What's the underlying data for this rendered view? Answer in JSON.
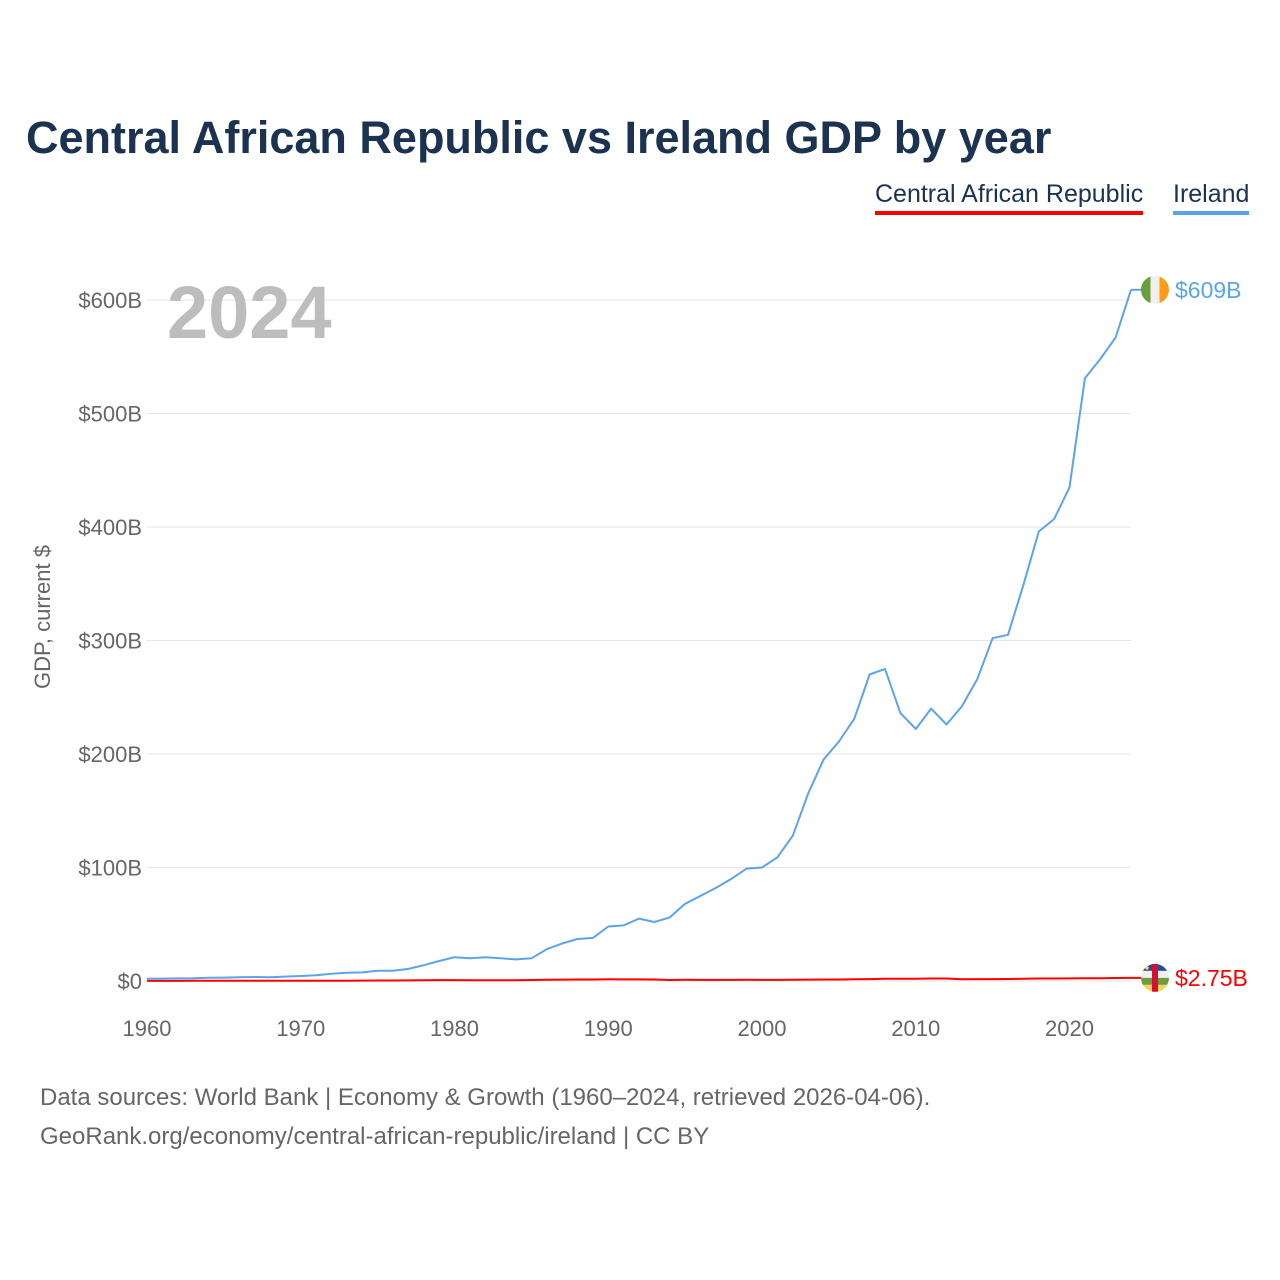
{
  "title": "Central African Republic vs Ireland GDP by year",
  "legend": [
    {
      "label": "Central African Republic",
      "color": "#ff0000"
    },
    {
      "label": "Ireland",
      "color": "#5ba4ec"
    }
  ],
  "year_watermark": "2024",
  "footer": {
    "line1": "Data sources: World Bank | Economy & Growth (1960–2024, retrieved 2026-04-06).",
    "line2": "GeoRank.org/economy/central-african-republic/ireland | CC BY"
  },
  "chart_data": {
    "type": "line",
    "title": "Central African Republic vs Ireland GDP by year",
    "xlabel": "",
    "ylabel": "GDP, current $",
    "xlim": [
      1960,
      2024
    ],
    "ylim": [
      0,
      600
    ],
    "y_unit": "billion USD",
    "grid": true,
    "legend_position": "top-right",
    "x_ticks": [
      1960,
      1970,
      1980,
      1990,
      2000,
      2010,
      2020
    ],
    "x_tick_labels": [
      "1960",
      "1970",
      "1980",
      "1990",
      "2000",
      "2010",
      "2020"
    ],
    "y_ticks": [
      0,
      100,
      200,
      300,
      400,
      500,
      600
    ],
    "y_tick_labels": [
      "$0",
      "$100B",
      "$200B",
      "$300B",
      "$400B",
      "$500B",
      "$600B"
    ],
    "x": [
      1960,
      1961,
      1962,
      1963,
      1964,
      1965,
      1966,
      1967,
      1968,
      1969,
      1970,
      1971,
      1972,
      1973,
      1974,
      1975,
      1976,
      1977,
      1978,
      1979,
      1980,
      1981,
      1982,
      1983,
      1984,
      1985,
      1986,
      1987,
      1988,
      1989,
      1990,
      1991,
      1992,
      1993,
      1994,
      1995,
      1996,
      1997,
      1998,
      1999,
      2000,
      2001,
      2002,
      2003,
      2004,
      2005,
      2006,
      2007,
      2008,
      2009,
      2010,
      2011,
      2012,
      2013,
      2014,
      2015,
      2016,
      2017,
      2018,
      2019,
      2020,
      2021,
      2022,
      2023,
      2024
    ],
    "series": [
      {
        "name": "Central African Republic",
        "color": "#ff0000",
        "end_label": "$2.75B",
        "values": [
          0.11,
          0.12,
          0.13,
          0.14,
          0.15,
          0.16,
          0.17,
          0.18,
          0.19,
          0.19,
          0.2,
          0.22,
          0.25,
          0.3,
          0.34,
          0.4,
          0.47,
          0.55,
          0.65,
          0.75,
          0.8,
          0.7,
          0.66,
          0.63,
          0.6,
          0.87,
          1.12,
          1.2,
          1.3,
          1.3,
          1.5,
          1.4,
          1.44,
          1.3,
          0.85,
          1.1,
          1.0,
          0.94,
          1.0,
          1.05,
          0.96,
          0.97,
          1.05,
          1.2,
          1.32,
          1.35,
          1.47,
          1.7,
          1.98,
          2.0,
          2.0,
          2.2,
          2.2,
          1.5,
          1.7,
          1.7,
          1.8,
          2.0,
          2.2,
          2.2,
          2.3,
          2.5,
          2.4,
          2.6,
          2.75
        ]
      },
      {
        "name": "Ireland",
        "color": "#5ba4ec",
        "end_label": "$609B",
        "values": [
          1.9,
          2.1,
          2.3,
          2.4,
          2.8,
          3.0,
          3.3,
          3.5,
          3.3,
          3.9,
          4.4,
          5.0,
          6.3,
          7.2,
          7.6,
          9.0,
          9.0,
          10.7,
          13.9,
          17.6,
          21,
          20,
          21,
          20,
          19,
          20,
          28,
          33,
          37,
          38,
          48,
          49,
          55,
          52,
          56,
          68,
          75,
          82,
          90,
          99,
          100,
          109,
          128,
          165,
          195,
          211,
          231,
          270,
          275,
          236,
          222,
          240,
          226,
          242,
          266,
          302,
          305,
          349,
          396,
          407,
          435,
          531,
          548,
          567,
          609
        ]
      }
    ]
  }
}
